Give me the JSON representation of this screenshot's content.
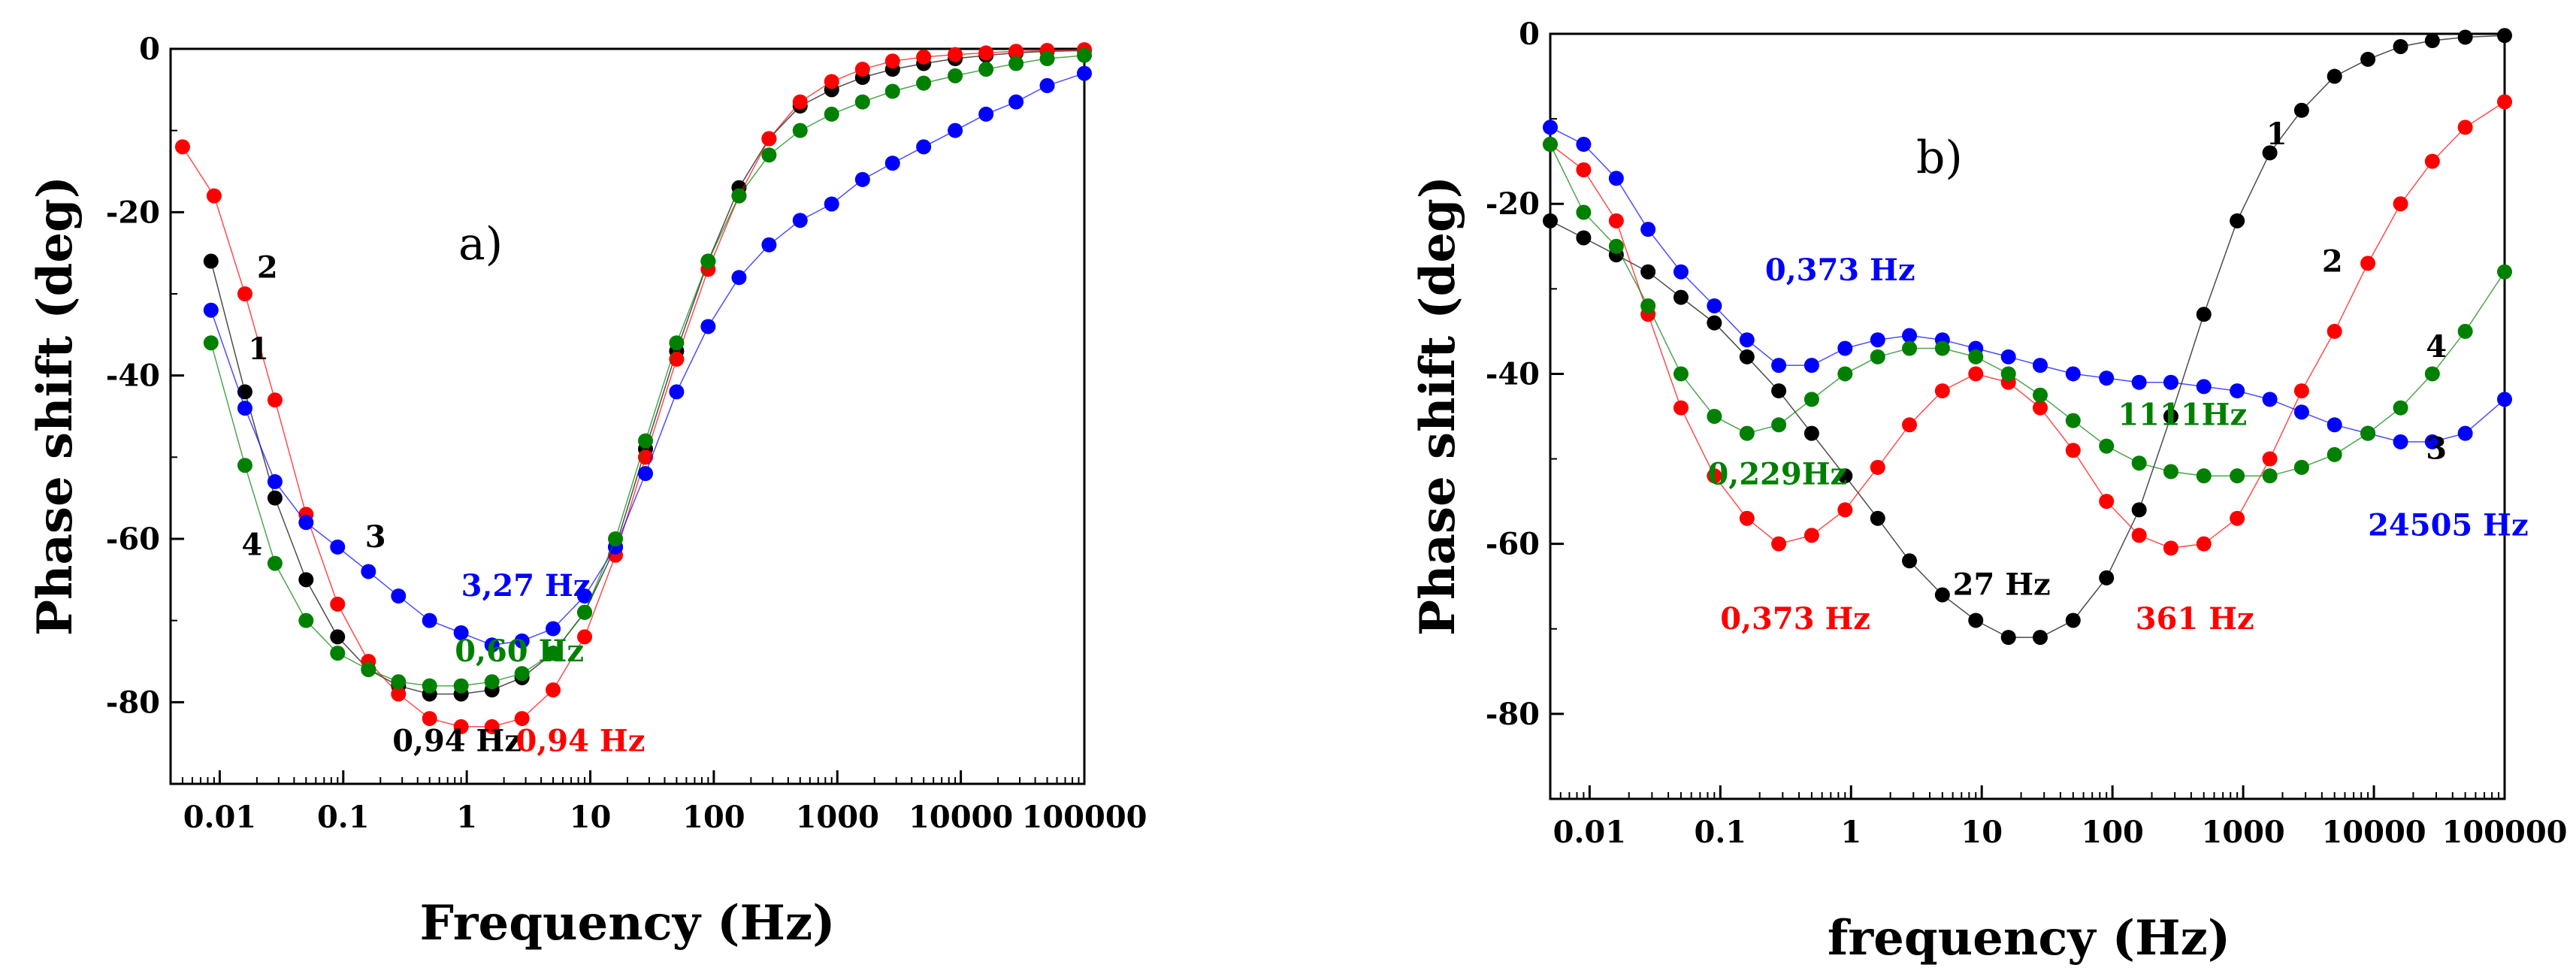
{
  "chart_data": [
    {
      "type": "scatter",
      "panel_label": "a)",
      "xlabel": "Frequency (Hz)",
      "ylabel": "Phase shift (deg)",
      "xscale": "log",
      "xlim": [
        0.004,
        100000
      ],
      "ylim": [
        -90,
        0
      ],
      "xticks": [
        0.01,
        0.1,
        1,
        10,
        100,
        1000,
        10000,
        100000
      ],
      "xtick_labels": [
        "0.01",
        "0.1",
        "1",
        "10",
        "100",
        "1000",
        "10000",
        "100000"
      ],
      "yticks": [
        0,
        -20,
        -40,
        -60,
        -80
      ],
      "ytick_labels": [
        "0",
        "-20",
        "-40",
        "-60",
        "-80"
      ],
      "series": [
        {
          "name": "1",
          "color": "#000000",
          "x": [
            0.0085,
            0.016,
            0.028,
            0.05,
            0.09,
            0.16,
            0.28,
            0.5,
            0.9,
            1.6,
            2.8,
            5,
            9,
            16,
            28,
            50,
            90,
            160,
            280,
            500,
            900,
            1600,
            2800,
            5000,
            9000,
            16000,
            28000,
            50000,
            100000
          ],
          "y": [
            -26,
            -42,
            -55,
            -65,
            -72,
            -76,
            -78,
            -79,
            -79,
            -78.5,
            -77,
            -74,
            -69,
            -61,
            -49,
            -37,
            -26,
            -17,
            -11,
            -7,
            -5,
            -3.5,
            -2.5,
            -1.8,
            -1.2,
            -0.8,
            -0.5,
            -0.3,
            -0.2
          ]
        },
        {
          "name": "2",
          "color": "#ff0000",
          "x": [
            0.005,
            0.009,
            0.016,
            0.028,
            0.05,
            0.09,
            0.16,
            0.28,
            0.5,
            0.9,
            1.6,
            2.8,
            5,
            9,
            16,
            28,
            50,
            90,
            160,
            280,
            500,
            900,
            1600,
            2800,
            5000,
            9000,
            16000,
            28000,
            50000,
            100000
          ],
          "y": [
            -12,
            -18,
            -30,
            -43,
            -57,
            -68,
            -75,
            -79,
            -82,
            -83,
            -83,
            -82,
            -78.5,
            -72,
            -62,
            -50,
            -38,
            -27,
            -18,
            -11,
            -6.5,
            -4,
            -2.5,
            -1.5,
            -1,
            -0.7,
            -0.5,
            -0.3,
            -0.2,
            -0.1
          ]
        },
        {
          "name": "3",
          "color": "#0000ff",
          "x": [
            0.0085,
            0.016,
            0.028,
            0.05,
            0.09,
            0.16,
            0.28,
            0.5,
            0.9,
            1.6,
            2.8,
            5,
            9,
            16,
            28,
            50,
            90,
            160,
            280,
            500,
            900,
            1600,
            2800,
            5000,
            9000,
            16000,
            28000,
            50000,
            100000
          ],
          "y": [
            -32,
            -44,
            -53,
            -58,
            -61,
            -64,
            -67,
            -70,
            -71.5,
            -73,
            -72.5,
            -71,
            -67,
            -61,
            -52,
            -42,
            -34,
            -28,
            -24,
            -21,
            -19,
            -16,
            -14,
            -12,
            -10,
            -8,
            -6.5,
            -4.5,
            -3
          ]
        },
        {
          "name": "4",
          "color": "#008000",
          "x": [
            0.0085,
            0.016,
            0.028,
            0.05,
            0.09,
            0.16,
            0.28,
            0.5,
            0.9,
            1.6,
            2.8,
            5,
            9,
            16,
            28,
            50,
            90,
            160,
            280,
            500,
            900,
            1600,
            2800,
            5000,
            9000,
            16000,
            28000,
            50000,
            100000
          ],
          "y": [
            -36,
            -51,
            -63,
            -70,
            -74,
            -76,
            -77.5,
            -78,
            -78,
            -77.5,
            -76.5,
            -74,
            -69,
            -60,
            -48,
            -36,
            -26,
            -18,
            -13,
            -10,
            -8,
            -6.5,
            -5.2,
            -4.2,
            -3.3,
            -2.5,
            -1.8,
            -1.2,
            -0.8
          ]
        }
      ],
      "annotations": [
        {
          "text": "2",
          "x": 0.02,
          "y": -28,
          "color": "#000000"
        },
        {
          "text": "1",
          "x": 0.017,
          "y": -38,
          "color": "#000000"
        },
        {
          "text": "3",
          "x": 0.15,
          "y": -61,
          "color": "#000000"
        },
        {
          "text": "4",
          "x": 0.015,
          "y": -62,
          "color": "#000000"
        },
        {
          "text": "3,27 Hz",
          "x": 0.9,
          "y": -67,
          "color": "#0000ff"
        },
        {
          "text": "0,60 Hz",
          "x": 0.8,
          "y": -75,
          "color": "#008000"
        },
        {
          "text": "0,94 Hz",
          "x": 0.25,
          "y": -86,
          "color": "#000000"
        },
        {
          "text": "0,94 Hz",
          "x": 2.5,
          "y": -86,
          "color": "#ff0000"
        }
      ]
    },
    {
      "type": "scatter",
      "panel_label": "b)",
      "xlabel": "frequency (Hz)",
      "ylabel": "Phase shift (deg)",
      "xscale": "log",
      "xlim": [
        0.005,
        100000
      ],
      "ylim": [
        -90,
        0
      ],
      "xticks": [
        0.01,
        0.1,
        1,
        10,
        100,
        1000,
        10000,
        100000
      ],
      "xtick_labels": [
        "0.01",
        "0.1",
        "1",
        "10",
        "100",
        "1000",
        "10000",
        "100000"
      ],
      "yticks": [
        0,
        -20,
        -40,
        -60,
        -80
      ],
      "ytick_labels": [
        "0",
        "-20",
        "-40",
        "-60",
        "-80"
      ],
      "series": [
        {
          "name": "1",
          "color": "#000000",
          "x": [
            0.005,
            0.009,
            0.016,
            0.028,
            0.05,
            0.09,
            0.16,
            0.28,
            0.5,
            0.9,
            1.6,
            2.8,
            5,
            9,
            16,
            28,
            50,
            90,
            160,
            280,
            500,
            900,
            1600,
            2800,
            5000,
            9000,
            16000,
            28000,
            50000,
            100000
          ],
          "y": [
            -22,
            -24,
            -26,
            -28,
            -31,
            -34,
            -38,
            -42,
            -47,
            -52,
            -57,
            -62,
            -66,
            -69,
            -71,
            -71,
            -69,
            -64,
            -56,
            -45,
            -33,
            -22,
            -14,
            -9,
            -5,
            -3,
            -1.5,
            -0.8,
            -0.4,
            -0.2
          ]
        },
        {
          "name": "2",
          "color": "#ff0000",
          "x": [
            0.005,
            0.009,
            0.016,
            0.028,
            0.05,
            0.09,
            0.16,
            0.28,
            0.5,
            0.9,
            1.6,
            2.8,
            5,
            9,
            16,
            28,
            50,
            90,
            160,
            280,
            500,
            900,
            1600,
            2800,
            5000,
            9000,
            16000,
            28000,
            50000,
            100000
          ],
          "y": [
            -13,
            -16,
            -22,
            -33,
            -44,
            -52,
            -57,
            -60,
            -59,
            -56,
            -51,
            -46,
            -42,
            -40,
            -41,
            -44,
            -49,
            -55,
            -59,
            -60.5,
            -60,
            -57,
            -50,
            -42,
            -35,
            -27,
            -20,
            -15,
            -11,
            -8
          ]
        },
        {
          "name": "3",
          "color": "#0000ff",
          "x": [
            0.005,
            0.009,
            0.016,
            0.028,
            0.05,
            0.09,
            0.16,
            0.28,
            0.5,
            0.9,
            1.6,
            2.8,
            5,
            9,
            16,
            28,
            50,
            90,
            160,
            280,
            500,
            900,
            1600,
            2800,
            5000,
            9000,
            16000,
            28000,
            50000,
            100000
          ],
          "y": [
            -11,
            -13,
            -17,
            -23,
            -28,
            -32,
            -36,
            -39,
            -39,
            -37,
            -36,
            -35.5,
            -36,
            -37,
            -38,
            -39,
            -40,
            -40.5,
            -41,
            -41,
            -41.5,
            -42,
            -43,
            -44.5,
            -46,
            -47,
            -48,
            -48,
            -47,
            -43
          ]
        },
        {
          "name": "4",
          "color": "#008000",
          "x": [
            0.005,
            0.009,
            0.016,
            0.028,
            0.05,
            0.09,
            0.16,
            0.28,
            0.5,
            0.9,
            1.6,
            2.8,
            5,
            9,
            16,
            28,
            50,
            90,
            160,
            280,
            500,
            900,
            1600,
            2800,
            5000,
            9000,
            16000,
            28000,
            50000,
            100000
          ],
          "y": [
            -13,
            -21,
            -25,
            -32,
            -40,
            -45,
            -47,
            -46,
            -43,
            -40,
            -38,
            -37,
            -37,
            -38,
            -40,
            -42.5,
            -45.5,
            -48.5,
            -50.5,
            -51.5,
            -52,
            -52,
            -52,
            -51,
            -49.5,
            -47,
            -44,
            -40,
            -35,
            -28
          ]
        }
      ],
      "annotations": [
        {
          "text": "1",
          "x": 1500,
          "y": -13,
          "color": "#000000"
        },
        {
          "text": "2",
          "x": 4000,
          "y": -28,
          "color": "#000000"
        },
        {
          "text": "4",
          "x": 25000,
          "y": -38,
          "color": "#000000"
        },
        {
          "text": "3",
          "x": 25000,
          "y": -50,
          "color": "#000000"
        },
        {
          "text": "0,373 Hz",
          "x": 0.22,
          "y": -29,
          "color": "#0000ff"
        },
        {
          "text": "1111Hz",
          "x": 110,
          "y": -46,
          "color": "#008000"
        },
        {
          "text": "0,229Hz",
          "x": 0.08,
          "y": -53,
          "color": "#008000"
        },
        {
          "text": "24505 Hz",
          "x": 9000,
          "y": -59,
          "color": "#0000ff"
        },
        {
          "text": "27 Hz",
          "x": 6,
          "y": -66,
          "color": "#000000"
        },
        {
          "text": "361 Hz",
          "x": 150,
          "y": -70,
          "color": "#ff0000"
        },
        {
          "text": "0,373 Hz",
          "x": 0.1,
          "y": -70,
          "color": "#ff0000"
        }
      ]
    }
  ]
}
